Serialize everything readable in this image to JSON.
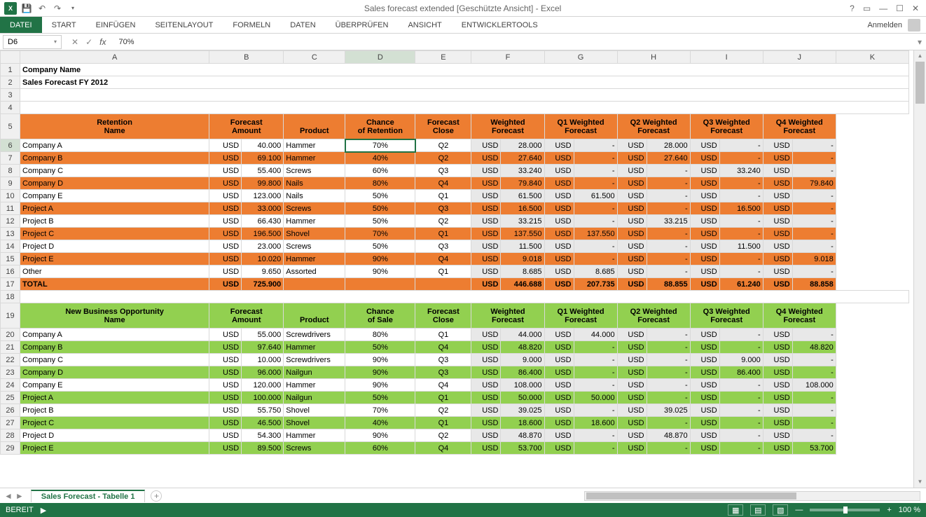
{
  "app": {
    "title": "Sales forecast extended  [Geschützte Ansicht] - Excel",
    "signin": "Anmelden"
  },
  "ribbon": {
    "file": "DATEI",
    "tabs": [
      "START",
      "EINFÜGEN",
      "SEITENLAYOUT",
      "FORMELN",
      "DATEN",
      "ÜBERPRÜFEN",
      "ANSICHT",
      "ENTWICKLERTOOLS"
    ]
  },
  "formula": {
    "cell_ref": "D6",
    "value": "70%"
  },
  "colors": {
    "excel_green": "#217346",
    "header_orange": "#ed7d31",
    "header_green": "#92d050",
    "gray_bg": "#e8e8e8"
  },
  "columns": [
    "A",
    "B",
    "C",
    "D",
    "E",
    "F",
    "G",
    "H",
    "I",
    "J",
    "K"
  ],
  "sheet": {
    "title": "Company Name",
    "subtitle": "Sales Forecast FY 2012",
    "section1": {
      "name": "Retention",
      "headers": {
        "name_l1": "Retention",
        "name_l2": "Name",
        "amt_l1": "Forecast",
        "amt_l2": "Amount",
        "product": "Product",
        "chance_l1": "Chance",
        "chance_l2": "of Retention",
        "close_l1": "Forecast",
        "close_l2": "Close",
        "wf_l1": "Weighted",
        "wf_l2": "Forecast",
        "q1_l1": "Q1 Weighted",
        "q1_l2": "Forecast",
        "q2_l1": "Q2 Weighted",
        "q2_l2": "Forecast",
        "q3_l1": "Q3 Weighted",
        "q3_l2": "Forecast",
        "q4_l1": "Q4 Weighted",
        "q4_l2": "Forecast"
      },
      "rows": [
        {
          "name": "Company A",
          "amt": "40.000",
          "product": "Hammer",
          "chance": "70%",
          "close": "Q2",
          "wf": "28.000",
          "q1": "-",
          "q2": "28.000",
          "q3": "-",
          "q4": "-",
          "alt": false
        },
        {
          "name": "Company B",
          "amt": "69.100",
          "product": "Hammer",
          "chance": "40%",
          "close": "Q2",
          "wf": "27.640",
          "q1": "-",
          "q2": "27.640",
          "q3": "-",
          "q4": "-",
          "alt": true
        },
        {
          "name": "Company C",
          "amt": "55.400",
          "product": "Screws",
          "chance": "60%",
          "close": "Q3",
          "wf": "33.240",
          "q1": "-",
          "q2": "-",
          "q3": "33.240",
          "q4": "-",
          "alt": false
        },
        {
          "name": "Company D",
          "amt": "99.800",
          "product": "Nails",
          "chance": "80%",
          "close": "Q4",
          "wf": "79.840",
          "q1": "-",
          "q2": "-",
          "q3": "-",
          "q4": "79.840",
          "alt": true
        },
        {
          "name": "Company E",
          "amt": "123.000",
          "product": "Nails",
          "chance": "50%",
          "close": "Q1",
          "wf": "61.500",
          "q1": "61.500",
          "q2": "-",
          "q3": "-",
          "q4": "-",
          "alt": false
        },
        {
          "name": "Project A",
          "amt": "33.000",
          "product": "Screws",
          "chance": "50%",
          "close": "Q3",
          "wf": "16.500",
          "q1": "-",
          "q2": "-",
          "q3": "16.500",
          "q4": "-",
          "alt": true
        },
        {
          "name": "Project B",
          "amt": "66.430",
          "product": "Hammer",
          "chance": "50%",
          "close": "Q2",
          "wf": "33.215",
          "q1": "-",
          "q2": "33.215",
          "q3": "-",
          "q4": "-",
          "alt": false
        },
        {
          "name": "Project C",
          "amt": "196.500",
          "product": "Shovel",
          "chance": "70%",
          "close": "Q1",
          "wf": "137.550",
          "q1": "137.550",
          "q2": "-",
          "q3": "-",
          "q4": "-",
          "alt": true
        },
        {
          "name": "Project D",
          "amt": "23.000",
          "product": "Screws",
          "chance": "50%",
          "close": "Q3",
          "wf": "11.500",
          "q1": "-",
          "q2": "-",
          "q3": "11.500",
          "q4": "-",
          "alt": false
        },
        {
          "name": "Project E",
          "amt": "10.020",
          "product": "Hammer",
          "chance": "90%",
          "close": "Q4",
          "wf": "9.018",
          "q1": "-",
          "q2": "-",
          "q3": "-",
          "q4": "9.018",
          "alt": true
        },
        {
          "name": "Other",
          "amt": "9.650",
          "product": "Assorted",
          "chance": "90%",
          "close": "Q1",
          "wf": "8.685",
          "q1": "8.685",
          "q2": "-",
          "q3": "-",
          "q4": "-",
          "alt": false
        }
      ],
      "total": {
        "name": "TOTAL",
        "amt": "725.900",
        "wf": "446.688",
        "q1": "207.735",
        "q2": "88.855",
        "q3": "61.240",
        "q4": "88.858"
      }
    },
    "section2": {
      "name": "New Business",
      "headers": {
        "name_l1": "New Business Opportunity",
        "name_l2": "Name",
        "amt_l1": "Forecast",
        "amt_l2": "Amount",
        "product": "Product",
        "chance_l1": "Chance",
        "chance_l2": "of Sale",
        "close_l1": "Forecast",
        "close_l2": "Close",
        "wf_l1": "Weighted",
        "wf_l2": "Forecast",
        "q1_l1": "Q1 Weighted",
        "q1_l2": "Forecast",
        "q2_l1": "Q2 Weighted",
        "q2_l2": "Forecast",
        "q3_l1": "Q3 Weighted",
        "q3_l2": "Forecast",
        "q4_l1": "Q4 Weighted",
        "q4_l2": "Forecast"
      },
      "rows": [
        {
          "name": "Company A",
          "amt": "55.000",
          "product": "Screwdrivers",
          "chance": "80%",
          "close": "Q1",
          "wf": "44.000",
          "q1": "44.000",
          "q2": "-",
          "q3": "-",
          "q4": "-",
          "alt": false
        },
        {
          "name": "Company B",
          "amt": "97.640",
          "product": "Hammer",
          "chance": "50%",
          "close": "Q4",
          "wf": "48.820",
          "q1": "-",
          "q2": "-",
          "q3": "-",
          "q4": "48.820",
          "alt": true
        },
        {
          "name": "Company C",
          "amt": "10.000",
          "product": "Screwdrivers",
          "chance": "90%",
          "close": "Q3",
          "wf": "9.000",
          "q1": "-",
          "q2": "-",
          "q3": "9.000",
          "q4": "-",
          "alt": false
        },
        {
          "name": "Company D",
          "amt": "96.000",
          "product": "Nailgun",
          "chance": "90%",
          "close": "Q3",
          "wf": "86.400",
          "q1": "-",
          "q2": "-",
          "q3": "86.400",
          "q4": "-",
          "alt": true
        },
        {
          "name": "Company E",
          "amt": "120.000",
          "product": "Hammer",
          "chance": "90%",
          "close": "Q4",
          "wf": "108.000",
          "q1": "-",
          "q2": "-",
          "q3": "-",
          "q4": "108.000",
          "alt": false
        },
        {
          "name": "Project A",
          "amt": "100.000",
          "product": "Nailgun",
          "chance": "50%",
          "close": "Q1",
          "wf": "50.000",
          "q1": "50.000",
          "q2": "-",
          "q3": "-",
          "q4": "-",
          "alt": true
        },
        {
          "name": "Project B",
          "amt": "55.750",
          "product": "Shovel",
          "chance": "70%",
          "close": "Q2",
          "wf": "39.025",
          "q1": "-",
          "q2": "39.025",
          "q3": "-",
          "q4": "-",
          "alt": false
        },
        {
          "name": "Project C",
          "amt": "46.500",
          "product": "Shovel",
          "chance": "40%",
          "close": "Q1",
          "wf": "18.600",
          "q1": "18.600",
          "q2": "-",
          "q3": "-",
          "q4": "-",
          "alt": true
        },
        {
          "name": "Project D",
          "amt": "54.300",
          "product": "Hammer",
          "chance": "90%",
          "close": "Q2",
          "wf": "48.870",
          "q1": "-",
          "q2": "48.870",
          "q3": "-",
          "q4": "-",
          "alt": false
        },
        {
          "name": "Project E",
          "amt": "89.500",
          "product": "Screws",
          "chance": "60%",
          "close": "Q4",
          "wf": "53.700",
          "q1": "-",
          "q2": "-",
          "q3": "-",
          "q4": "53.700",
          "alt": true
        }
      ]
    }
  },
  "sheet_tab": "Sales Forecast - Tabelle 1",
  "status": {
    "ready": "BEREIT",
    "zoom": "100 %"
  },
  "currency": "USD"
}
